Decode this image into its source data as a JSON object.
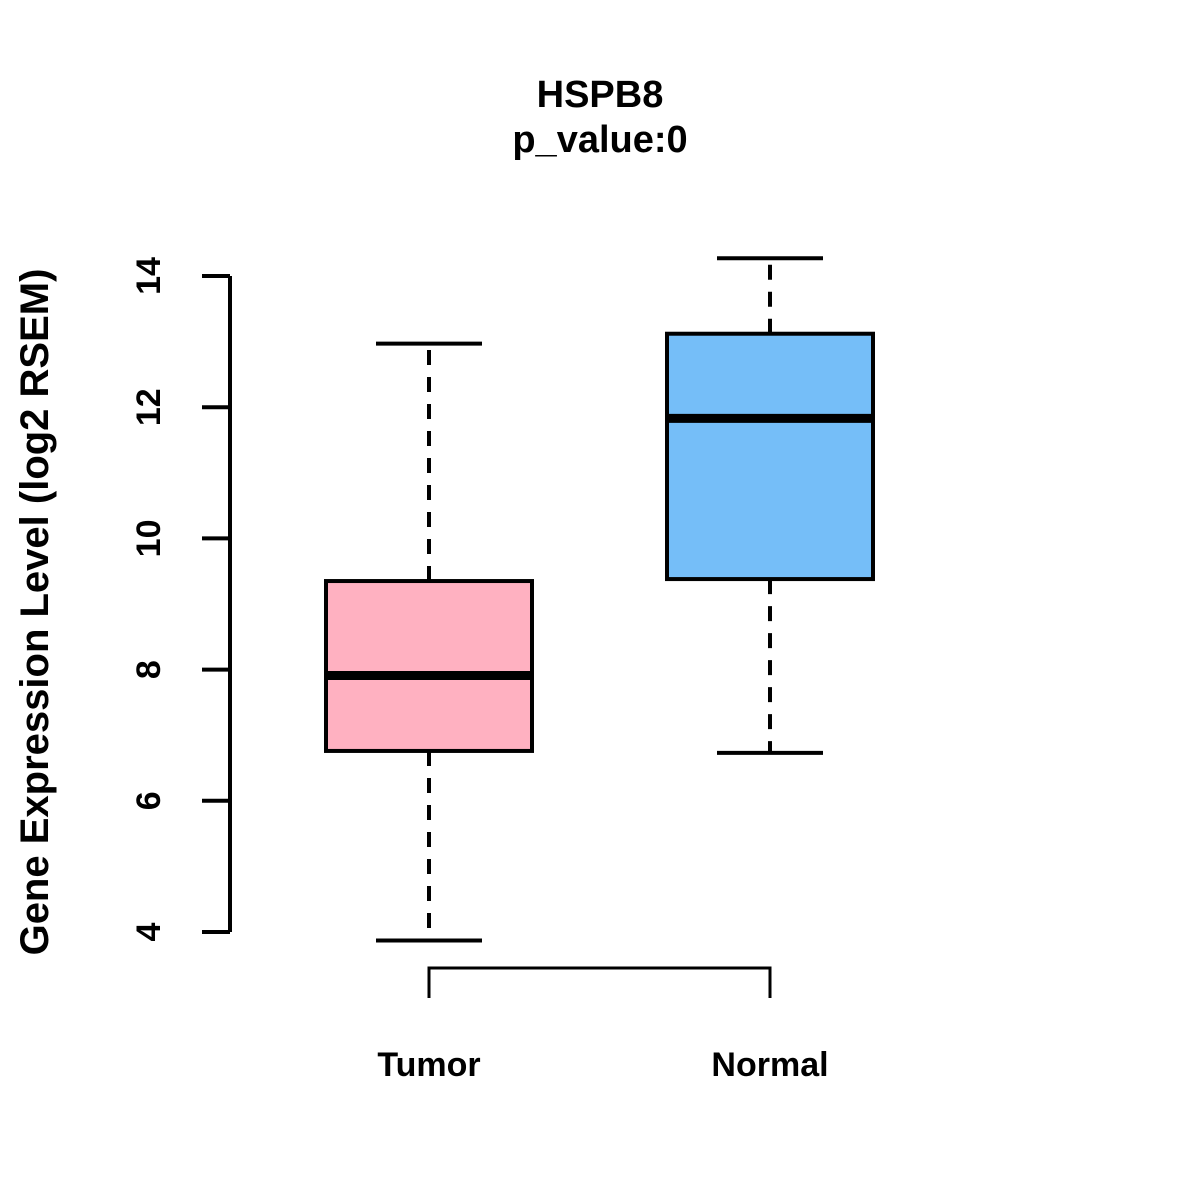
{
  "chart_data": {
    "type": "boxplot",
    "title": "HSPB8",
    "subtitle": "p_value:0",
    "ylabel": "Gene Expression Level (log2 RSEM)",
    "xlabel": "",
    "categories": [
      "Tumor",
      "Normal"
    ],
    "ylim": [
      4,
      14
    ],
    "yticks": [
      4,
      6,
      8,
      10,
      12,
      14
    ],
    "grid": "off",
    "legend": "none",
    "series": [
      {
        "name": "Tumor",
        "color": "#FFB1C1",
        "whisker_low": 3.87,
        "q1": 6.76,
        "median": 7.91,
        "q3": 9.35,
        "whisker_high": 12.97
      },
      {
        "name": "Normal",
        "color": "#75BEF8",
        "whisker_low": 6.73,
        "q1": 9.38,
        "median": 11.83,
        "q3": 13.12,
        "whisker_high": 14.27
      }
    ],
    "box_border_color": "#000000",
    "median_color": "#000000",
    "background_color": "#FFFFFF"
  }
}
